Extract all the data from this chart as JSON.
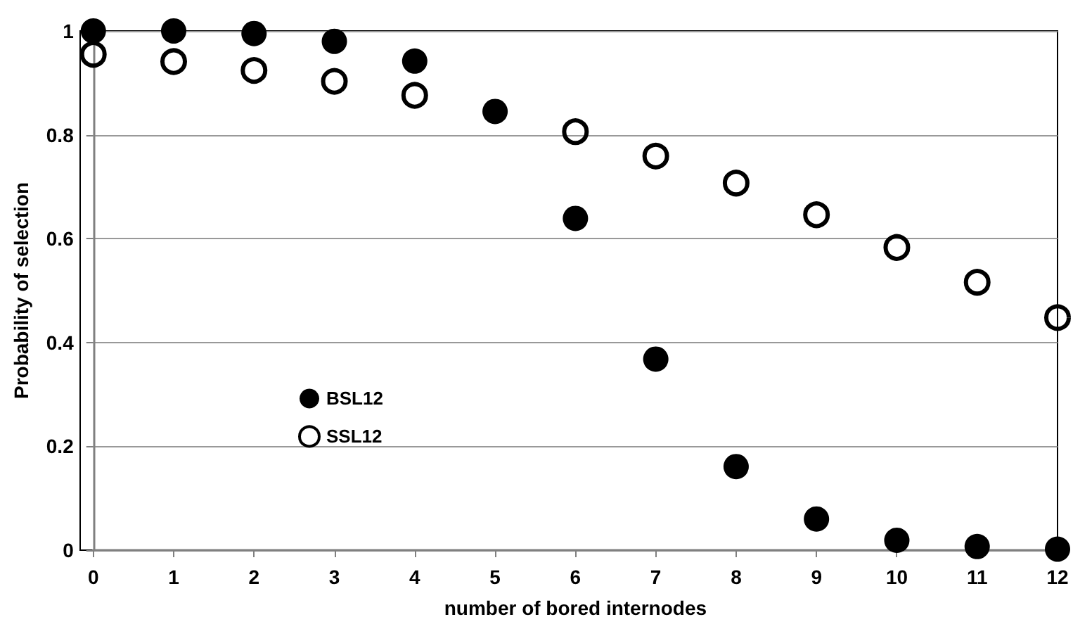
{
  "chart_data": {
    "type": "scatter",
    "xlabel": "number of bored internodes",
    "ylabel": "Probability of selection",
    "x": [
      0,
      1,
      2,
      3,
      4,
      5,
      6,
      7,
      8,
      9,
      10,
      11,
      12
    ],
    "series": [
      {
        "name": "BSL12",
        "color": "#000000",
        "values": [
          1,
          1,
          0.995,
          0.98,
          0.942,
          0.845,
          0.639,
          0.368,
          0.161,
          0.06,
          0.019,
          0.007,
          0.002
        ]
      },
      {
        "name": "SSL12",
        "color": "#000000",
        "values": [
          0.955,
          0.941,
          0.924,
          0.903,
          0.876,
          null,
          0.806,
          0.759,
          0.707,
          0.646,
          0.583,
          0.516,
          0.448
        ]
      }
    ],
    "xlim": [
      0,
      12
    ],
    "xticks": [
      0,
      1,
      2,
      3,
      4,
      5,
      6,
      7,
      8,
      9,
      10,
      11,
      12
    ],
    "ylim": [
      0,
      1
    ],
    "yticks": [
      0,
      0.2,
      0.4,
      0.6,
      0.8,
      1
    ],
    "grid": "y",
    "legend": "left",
    "marker": "circle"
  }
}
